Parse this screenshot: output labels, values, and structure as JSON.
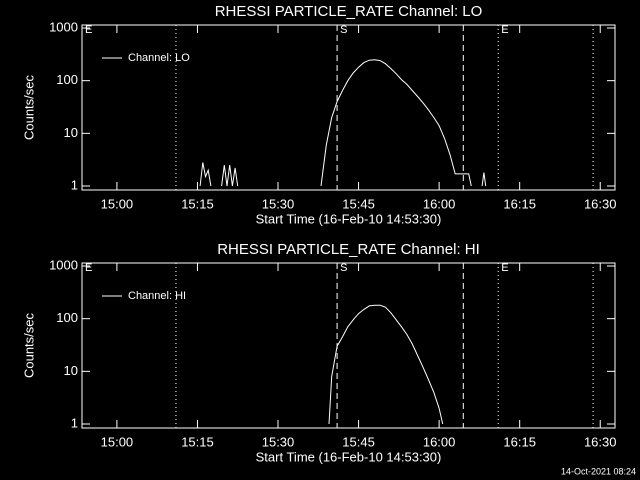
{
  "chart_data": [
    {
      "type": "line",
      "title": "RHESSI PARTICLE_RATE Channel: LO",
      "xlabel": "Start Time (16-Feb-10 14:53:30)",
      "ylabel": "Counts/sec",
      "log_y": true,
      "legend": "upper left",
      "xlim": [
        "14:53:30",
        "16:32:45"
      ],
      "xticks": [
        "15:00",
        "15:15",
        "15:30",
        "15:45",
        "16:00",
        "16:15",
        "16:30"
      ],
      "ylim": [
        0.84,
        1140
      ],
      "yticks": [
        1,
        10,
        100,
        1000
      ],
      "markers": [
        {
          "x": "14:53:30",
          "style": "none",
          "label": "E"
        },
        {
          "x": "15:11:00",
          "style": "dotted"
        },
        {
          "x": "15:41:00",
          "style": "dashed",
          "label": "S"
        },
        {
          "x": "16:04:30",
          "style": "dashed"
        },
        {
          "x": "16:11:00",
          "style": "dotted",
          "label": "E"
        },
        {
          "x": "16:28:40",
          "style": "dotted"
        }
      ],
      "x": [
        "15:15:30",
        "15:16:00",
        "15:16:30",
        "15:17:00",
        "15:17:30",
        "15:18:00",
        "15:19:30",
        "15:20:00",
        "15:20:30",
        "15:21:00",
        "15:21:30",
        "15:22:00",
        "15:22:30",
        "15:30:00",
        "15:38:00",
        "15:39:00",
        "15:40:00",
        "15:41:00",
        "15:42:00",
        "15:43:00",
        "15:44:00",
        "15:45:00",
        "15:46:00",
        "15:47:00",
        "15:48:00",
        "15:49:00",
        "15:50:00",
        "15:51:00",
        "15:52:00",
        "15:53:00",
        "15:54:00",
        "15:55:00",
        "15:56:00",
        "15:57:00",
        "15:58:00",
        "15:59:00",
        "16:00:00",
        "16:01:00",
        "16:02:00",
        "16:03:00",
        "16:05:30",
        "16:06:00",
        "16:07:00",
        "16:08:00",
        "16:08:20",
        "16:08:40"
      ],
      "series": [
        {
          "name": "Channel: LO",
          "color": "#ffffff",
          "values": [
            1,
            2.8,
            1.5,
            2,
            1,
            null,
            1,
            2.5,
            1,
            2.5,
            1,
            2.2,
            1,
            null,
            1,
            6,
            20,
            40,
            65,
            100,
            140,
            180,
            220,
            245,
            250,
            240,
            210,
            170,
            135,
            105,
            85,
            65,
            50,
            38,
            28,
            20,
            14,
            8,
            4,
            1.7,
            1.7,
            1,
            null,
            1,
            1.8,
            1
          ]
        }
      ]
    },
    {
      "type": "line",
      "title": "RHESSI PARTICLE_RATE Channel: HI",
      "xlabel": "Start Time (16-Feb-10 14:53:30)",
      "ylabel": "Counts/sec",
      "log_y": true,
      "legend": "upper left",
      "xlim": [
        "14:53:30",
        "16:32:45"
      ],
      "xticks": [
        "15:00",
        "15:15",
        "15:30",
        "15:45",
        "16:00",
        "16:15",
        "16:30"
      ],
      "ylim": [
        0.84,
        1140
      ],
      "yticks": [
        1,
        10,
        100,
        1000
      ],
      "markers": [
        {
          "x": "14:53:30",
          "style": "none",
          "label": "E"
        },
        {
          "x": "15:11:00",
          "style": "dotted"
        },
        {
          "x": "15:41:00",
          "style": "dashed",
          "label": "S"
        },
        {
          "x": "16:04:30",
          "style": "dashed"
        },
        {
          "x": "16:11:00",
          "style": "dotted",
          "label": "E"
        },
        {
          "x": "16:28:40",
          "style": "dotted"
        }
      ],
      "x": [
        "15:39:30",
        "15:40:00",
        "15:41:00",
        "15:42:00",
        "15:43:00",
        "15:44:00",
        "15:45:00",
        "15:46:00",
        "15:47:00",
        "15:48:00",
        "15:49:00",
        "15:50:00",
        "15:51:00",
        "15:52:00",
        "15:53:00",
        "15:54:00",
        "15:55:00",
        "15:56:00",
        "15:57:00",
        "15:58:00",
        "15:59:00",
        "16:00:00",
        "16:00:40"
      ],
      "series": [
        {
          "name": "Channel: HI",
          "color": "#ffffff",
          "values": [
            1,
            8,
            30,
            45,
            70,
            95,
            125,
            150,
            175,
            180,
            180,
            165,
            130,
            95,
            70,
            50,
            33,
            20,
            12,
            7,
            4,
            2,
            1
          ]
        }
      ]
    }
  ],
  "footer": "14-Oct-2021 08:24"
}
